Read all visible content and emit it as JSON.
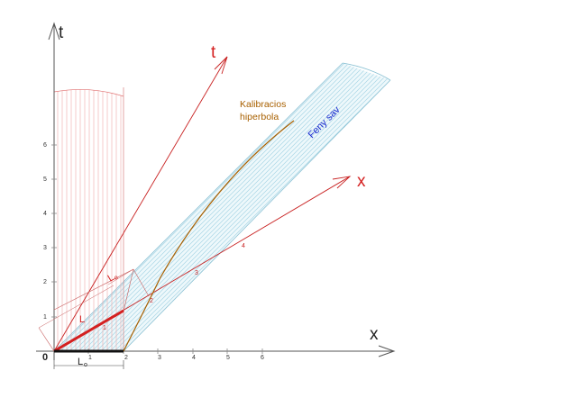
{
  "labels": {
    "t_axis": "t",
    "x_axis": "x",
    "t_prime": "t",
    "x_prime": "x",
    "origin": "0",
    "hyperbola_line1": "Kalibracios",
    "hyperbola_line2": "hiperbola",
    "light_band": "Feny sav",
    "L_prime": "L",
    "L0_bottom": "L",
    "L0_bottom_sub": "o",
    "L0_upper": "L",
    "L0_upper_sub": "o"
  },
  "ticks": {
    "x_axis": [
      "1",
      "2",
      "3",
      "4",
      "5",
      "6"
    ],
    "t_axis": [
      "1",
      "2",
      "3",
      "4",
      "5",
      "6"
    ],
    "x_prime": [
      "1",
      "2",
      "3",
      "4"
    ]
  },
  "colors": {
    "red": "#d42020",
    "dark_red": "#b01010",
    "orange": "#b86a00",
    "blue": "#1a2ccf",
    "band_hatch": "#a8d6e6",
    "gray": "#555555"
  }
}
